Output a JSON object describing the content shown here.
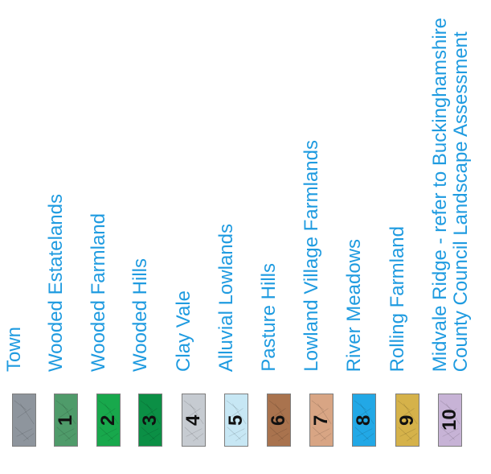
{
  "legend": {
    "items": [
      {
        "number": "",
        "label": "Town",
        "color": "#8e959d"
      },
      {
        "number": "1",
        "label": "Wooded Estatelands",
        "color": "#4f9b6a"
      },
      {
        "number": "2",
        "label": "Wooded Farmland",
        "color": "#18a84c"
      },
      {
        "number": "3",
        "label": "Wooded Hills",
        "color": "#0b8f45"
      },
      {
        "number": "4",
        "label": "Clay Vale",
        "color": "#c6cbd1"
      },
      {
        "number": "5",
        "label": "Alluvial Lowlands",
        "color": "#c7e7f4"
      },
      {
        "number": "6",
        "label": "Pasture Hills",
        "color": "#a9734e"
      },
      {
        "number": "7",
        "label": "Lowland Village Farmlands",
        "color": "#d8a584"
      },
      {
        "number": "8",
        "label": "River Meadows",
        "color": "#22a8e6"
      },
      {
        "number": "9",
        "label": "Rolling Farmland",
        "color": "#d5b24a"
      },
      {
        "number": "10",
        "label": "Midvale Ridge - refer to Buckinghamshire County Council Landscape Assessment",
        "label_line1": "Midvale Ridge - refer to Buckinghamshire",
        "label_line2": "County Council Landscape Assessment",
        "color": "#c7b3d6"
      }
    ]
  }
}
